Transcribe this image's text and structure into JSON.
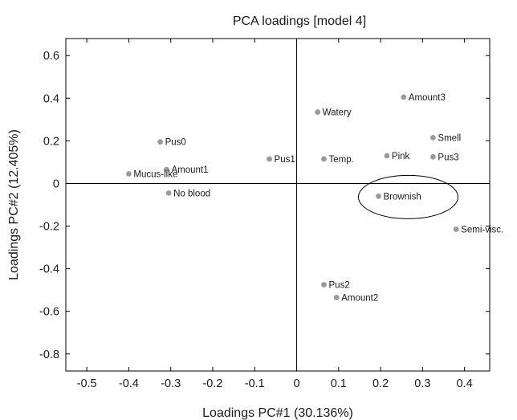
{
  "chart_data": {
    "type": "scatter",
    "title": "PCA loadings [model 4]",
    "xlabel": "Loadings PC#1 (30.136%)",
    "ylabel": "Loadings PC#2 (12.405%)",
    "xlim": [
      -0.55,
      0.46
    ],
    "ylim": [
      -0.88,
      0.68
    ],
    "xticks": [
      "-0.5",
      "-0.4",
      "-0.3",
      "-0.2",
      "-0.1",
      "0",
      "0.1",
      "0.2",
      "0.3",
      "0.4"
    ],
    "yticks": [
      "0.6",
      "0.4",
      "0.2",
      "0",
      "-0.2",
      "-0.4",
      "-0.6",
      "-0.8"
    ],
    "xtick_values": [
      -0.5,
      -0.4,
      -0.3,
      -0.2,
      -0.1,
      0,
      0.1,
      0.2,
      0.3,
      0.4
    ],
    "ytick_values": [
      0.6,
      0.4,
      0.2,
      0,
      -0.2,
      -0.4,
      -0.6,
      -0.8
    ],
    "grid": false,
    "reference_lines": {
      "x": 0,
      "y": 0
    },
    "marker_color": "#9a9a9a",
    "points": [
      {
        "label": "Pus0",
        "x": -0.325,
        "y": 0.195
      },
      {
        "label": "Amount1",
        "x": -0.31,
        "y": 0.065
      },
      {
        "label": "Mucus-like",
        "x": -0.4,
        "y": 0.045
      },
      {
        "label": "No blood",
        "x": -0.305,
        "y": -0.045
      },
      {
        "label": "Pus1",
        "x": -0.065,
        "y": 0.115
      },
      {
        "label": "Watery",
        "x": 0.05,
        "y": 0.335
      },
      {
        "label": "Temp.",
        "x": 0.065,
        "y": 0.115
      },
      {
        "label": "Amount3",
        "x": 0.255,
        "y": 0.405
      },
      {
        "label": "Smell",
        "x": 0.325,
        "y": 0.215
      },
      {
        "label": "Pink",
        "x": 0.215,
        "y": 0.13
      },
      {
        "label": "Pus3",
        "x": 0.325,
        "y": 0.125
      },
      {
        "label": "Brownish",
        "x": 0.195,
        "y": -0.06
      },
      {
        "label": "Semi-visc.",
        "x": 0.38,
        "y": -0.215
      },
      {
        "label": "Pus2",
        "x": 0.065,
        "y": -0.475
      },
      {
        "label": "Amount2",
        "x": 0.095,
        "y": -0.535
      }
    ],
    "highlight": {
      "label": "Brownish",
      "shape": "ellipse"
    }
  }
}
